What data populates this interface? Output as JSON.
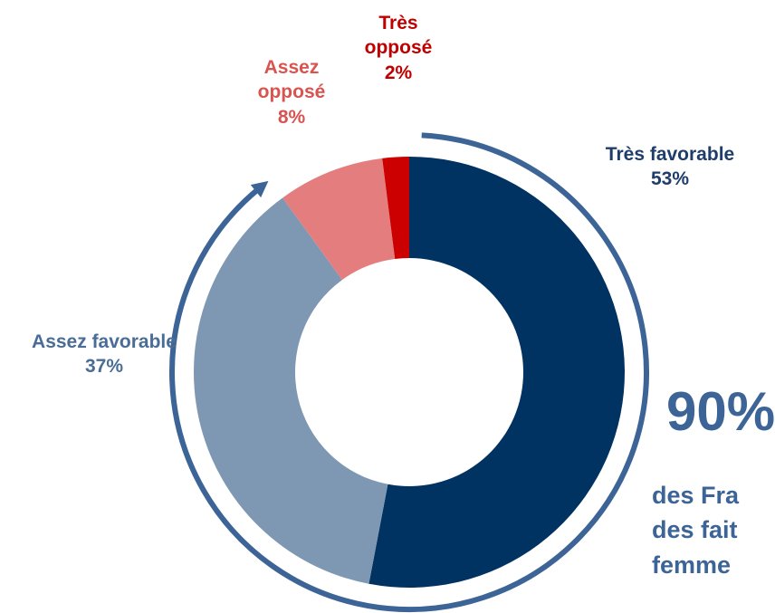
{
  "chart_data": {
    "type": "pie",
    "subtype": "donut",
    "title": "",
    "categories": [
      "Très favorable",
      "Assez favorable",
      "Assez opposé",
      "Très opposé"
    ],
    "values": [
      53,
      37,
      8,
      2
    ],
    "value_labels": [
      "53%",
      "37%",
      "8%",
      "2%"
    ],
    "colors": [
      "#003262",
      "#7e98b4",
      "#e47e7e",
      "#cc0000"
    ],
    "label_colors": [
      "#1f3d6b",
      "#4a6d98",
      "#d9534f",
      "#c00000"
    ],
    "labels": [
      {
        "lines": [
          "Très favorable",
          "53%"
        ]
      },
      {
        "lines": [
          "Assez favorable",
          "37%"
        ]
      },
      {
        "lines": [
          "Assez",
          "opposé",
          "8%"
        ]
      },
      {
        "lines": [
          "Très",
          "opposé",
          "2%"
        ]
      }
    ],
    "bracket_color": "#3d6496",
    "bracket_covers": [
      "Très favorable",
      "Assez favorable"
    ],
    "callout": {
      "value": "90%",
      "lines": [
        "des Fra",
        "des fait",
        "femme"
      ]
    }
  }
}
